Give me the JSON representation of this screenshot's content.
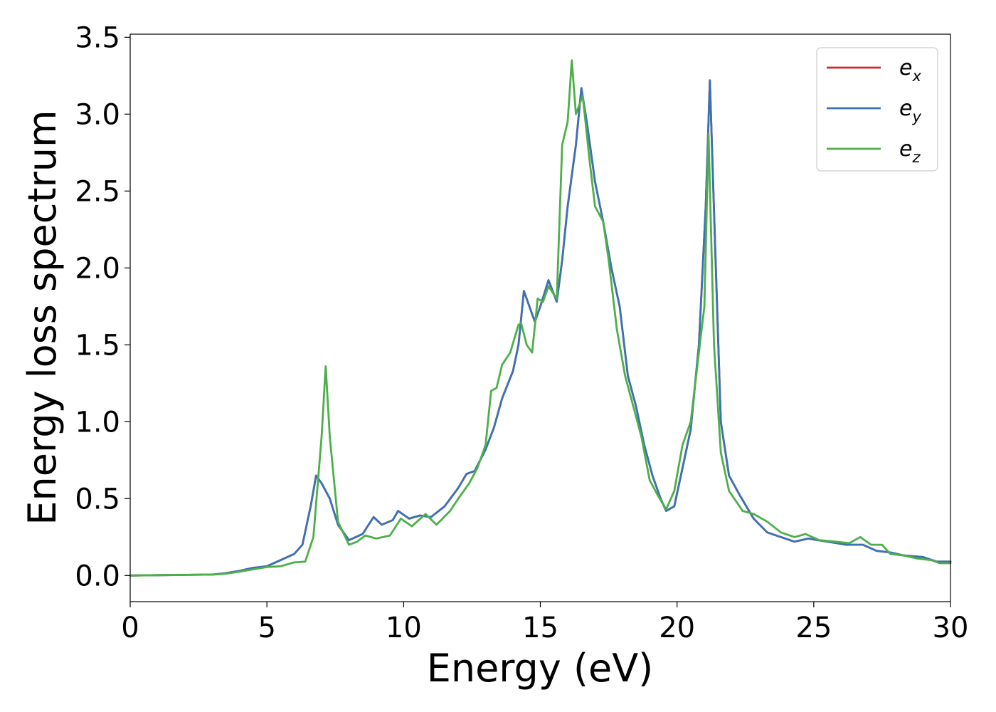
{
  "chart_data": {
    "type": "line",
    "title": "",
    "xlabel": "Energy (eV)",
    "ylabel": "Energy loss spectrum",
    "xlim": [
      0,
      30
    ],
    "ylim": [
      -0.17,
      3.52
    ],
    "xticks": [
      0,
      5,
      10,
      15,
      20,
      25,
      30
    ],
    "yticks": [
      0.0,
      0.5,
      1.0,
      1.5,
      2.0,
      2.5,
      3.0,
      3.5
    ],
    "xtick_labels": [
      "0",
      "5",
      "10",
      "15",
      "20",
      "25",
      "30"
    ],
    "ytick_labels": [
      "0.0",
      "0.5",
      "1.0",
      "1.5",
      "2.0",
      "2.5",
      "3.0",
      "3.5"
    ],
    "grid": false,
    "legend_position": "top-right",
    "series": [
      {
        "name": "e",
        "subscript": "x",
        "color": "#d62728",
        "points": [
          [
            0,
            0
          ],
          [
            1,
            0.002
          ],
          [
            2,
            0.004
          ],
          [
            3,
            0.006
          ],
          [
            3.5,
            0.015
          ],
          [
            4,
            0.03
          ],
          [
            4.5,
            0.05
          ],
          [
            5,
            0.06
          ],
          [
            5.5,
            0.1
          ],
          [
            6,
            0.14
          ],
          [
            6.3,
            0.2
          ],
          [
            6.6,
            0.45
          ],
          [
            6.8,
            0.65
          ],
          [
            7,
            0.6
          ],
          [
            7.3,
            0.5
          ],
          [
            7.6,
            0.33
          ],
          [
            8,
            0.23
          ],
          [
            8.5,
            0.27
          ],
          [
            8.9,
            0.38
          ],
          [
            9.2,
            0.33
          ],
          [
            9.6,
            0.36
          ],
          [
            9.8,
            0.42
          ],
          [
            10.2,
            0.37
          ],
          [
            10.6,
            0.39
          ],
          [
            11,
            0.38
          ],
          [
            11.5,
            0.45
          ],
          [
            12,
            0.57
          ],
          [
            12.3,
            0.66
          ],
          [
            12.6,
            0.68
          ],
          [
            13,
            0.82
          ],
          [
            13.3,
            0.96
          ],
          [
            13.6,
            1.15
          ],
          [
            14,
            1.33
          ],
          [
            14.2,
            1.5
          ],
          [
            14.4,
            1.85
          ],
          [
            14.6,
            1.75
          ],
          [
            14.8,
            1.65
          ],
          [
            15,
            1.75
          ],
          [
            15.3,
            1.92
          ],
          [
            15.6,
            1.78
          ],
          [
            15.8,
            2.05
          ],
          [
            16,
            2.4
          ],
          [
            16.3,
            2.8
          ],
          [
            16.5,
            3.17
          ],
          [
            16.7,
            2.95
          ],
          [
            17,
            2.56
          ],
          [
            17.3,
            2.3
          ],
          [
            17.6,
            2.0
          ],
          [
            17.9,
            1.75
          ],
          [
            18.2,
            1.3
          ],
          [
            18.5,
            1.1
          ],
          [
            18.8,
            0.85
          ],
          [
            19.1,
            0.65
          ],
          [
            19.4,
            0.5
          ],
          [
            19.6,
            0.42
          ],
          [
            19.9,
            0.45
          ],
          [
            20.2,
            0.7
          ],
          [
            20.5,
            0.95
          ],
          [
            20.8,
            1.5
          ],
          [
            21.05,
            2.4
          ],
          [
            21.2,
            3.22
          ],
          [
            21.4,
            2.1
          ],
          [
            21.6,
            1.0
          ],
          [
            21.9,
            0.65
          ],
          [
            22.3,
            0.52
          ],
          [
            22.8,
            0.37
          ],
          [
            23.3,
            0.28
          ],
          [
            23.8,
            0.25
          ],
          [
            24.3,
            0.22
          ],
          [
            24.8,
            0.24
          ],
          [
            25.5,
            0.22
          ],
          [
            26.2,
            0.2
          ],
          [
            26.8,
            0.2
          ],
          [
            27.3,
            0.16
          ],
          [
            27.8,
            0.15
          ],
          [
            28.3,
            0.13
          ],
          [
            29,
            0.12
          ],
          [
            29.5,
            0.09
          ],
          [
            30,
            0.09
          ]
        ]
      },
      {
        "name": "e",
        "subscript": "y",
        "color": "#3a73b5",
        "points": [
          [
            0,
            0
          ],
          [
            1,
            0.002
          ],
          [
            2,
            0.004
          ],
          [
            3,
            0.006
          ],
          [
            3.5,
            0.015
          ],
          [
            4,
            0.03
          ],
          [
            4.5,
            0.05
          ],
          [
            5,
            0.06
          ],
          [
            5.5,
            0.1
          ],
          [
            6,
            0.14
          ],
          [
            6.3,
            0.2
          ],
          [
            6.6,
            0.45
          ],
          [
            6.8,
            0.65
          ],
          [
            7,
            0.6
          ],
          [
            7.3,
            0.5
          ],
          [
            7.6,
            0.33
          ],
          [
            8,
            0.23
          ],
          [
            8.5,
            0.27
          ],
          [
            8.9,
            0.38
          ],
          [
            9.2,
            0.33
          ],
          [
            9.6,
            0.36
          ],
          [
            9.8,
            0.42
          ],
          [
            10.2,
            0.37
          ],
          [
            10.6,
            0.39
          ],
          [
            11,
            0.38
          ],
          [
            11.5,
            0.45
          ],
          [
            12,
            0.57
          ],
          [
            12.3,
            0.66
          ],
          [
            12.6,
            0.68
          ],
          [
            13,
            0.82
          ],
          [
            13.3,
            0.96
          ],
          [
            13.6,
            1.15
          ],
          [
            14,
            1.33
          ],
          [
            14.2,
            1.5
          ],
          [
            14.4,
            1.85
          ],
          [
            14.6,
            1.75
          ],
          [
            14.8,
            1.65
          ],
          [
            15,
            1.75
          ],
          [
            15.3,
            1.92
          ],
          [
            15.6,
            1.78
          ],
          [
            15.8,
            2.05
          ],
          [
            16,
            2.4
          ],
          [
            16.3,
            2.8
          ],
          [
            16.5,
            3.17
          ],
          [
            16.7,
            2.95
          ],
          [
            17,
            2.56
          ],
          [
            17.3,
            2.3
          ],
          [
            17.6,
            2.0
          ],
          [
            17.9,
            1.75
          ],
          [
            18.2,
            1.3
          ],
          [
            18.5,
            1.1
          ],
          [
            18.8,
            0.85
          ],
          [
            19.1,
            0.65
          ],
          [
            19.4,
            0.5
          ],
          [
            19.6,
            0.42
          ],
          [
            19.9,
            0.45
          ],
          [
            20.2,
            0.7
          ],
          [
            20.5,
            0.95
          ],
          [
            20.8,
            1.5
          ],
          [
            21.05,
            2.4
          ],
          [
            21.2,
            3.22
          ],
          [
            21.4,
            2.1
          ],
          [
            21.6,
            1.0
          ],
          [
            21.9,
            0.65
          ],
          [
            22.3,
            0.52
          ],
          [
            22.8,
            0.37
          ],
          [
            23.3,
            0.28
          ],
          [
            23.8,
            0.25
          ],
          [
            24.3,
            0.22
          ],
          [
            24.8,
            0.24
          ],
          [
            25.5,
            0.22
          ],
          [
            26.2,
            0.2
          ],
          [
            26.8,
            0.2
          ],
          [
            27.3,
            0.16
          ],
          [
            27.8,
            0.15
          ],
          [
            28.3,
            0.13
          ],
          [
            29,
            0.12
          ],
          [
            29.5,
            0.09
          ],
          [
            30,
            0.09
          ]
        ]
      },
      {
        "name": "e",
        "subscript": "z",
        "color": "#4daf4a",
        "points": [
          [
            0,
            0
          ],
          [
            1,
            0.002
          ],
          [
            2,
            0.004
          ],
          [
            3,
            0.006
          ],
          [
            3.5,
            0.012
          ],
          [
            4,
            0.025
          ],
          [
            4.5,
            0.04
          ],
          [
            5,
            0.055
          ],
          [
            5.5,
            0.06
          ],
          [
            6,
            0.085
          ],
          [
            6.4,
            0.09
          ],
          [
            6.7,
            0.25
          ],
          [
            7,
            0.9
          ],
          [
            7.15,
            1.36
          ],
          [
            7.3,
            0.9
          ],
          [
            7.6,
            0.35
          ],
          [
            8,
            0.2
          ],
          [
            8.3,
            0.22
          ],
          [
            8.6,
            0.26
          ],
          [
            9,
            0.24
          ],
          [
            9.5,
            0.26
          ],
          [
            9.9,
            0.37
          ],
          [
            10.3,
            0.32
          ],
          [
            10.8,
            0.4
          ],
          [
            11.2,
            0.33
          ],
          [
            11.7,
            0.42
          ],
          [
            12,
            0.5
          ],
          [
            12.4,
            0.6
          ],
          [
            12.7,
            0.7
          ],
          [
            13,
            0.85
          ],
          [
            13.2,
            1.2
          ],
          [
            13.4,
            1.22
          ],
          [
            13.6,
            1.37
          ],
          [
            13.9,
            1.45
          ],
          [
            14.2,
            1.63
          ],
          [
            14.3,
            1.64
          ],
          [
            14.5,
            1.5
          ],
          [
            14.7,
            1.45
          ],
          [
            14.9,
            1.8
          ],
          [
            15.1,
            1.78
          ],
          [
            15.3,
            1.88
          ],
          [
            15.6,
            1.8
          ],
          [
            15.8,
            2.8
          ],
          [
            16,
            2.95
          ],
          [
            16.15,
            3.35
          ],
          [
            16.3,
            3.0
          ],
          [
            16.55,
            3.12
          ],
          [
            16.8,
            2.7
          ],
          [
            17,
            2.4
          ],
          [
            17.3,
            2.3
          ],
          [
            17.5,
            2.05
          ],
          [
            17.8,
            1.6
          ],
          [
            18.1,
            1.3
          ],
          [
            18.4,
            1.1
          ],
          [
            18.7,
            0.9
          ],
          [
            19.0,
            0.62
          ],
          [
            19.3,
            0.52
          ],
          [
            19.6,
            0.43
          ],
          [
            19.9,
            0.55
          ],
          [
            20.2,
            0.85
          ],
          [
            20.5,
            1.0
          ],
          [
            20.8,
            1.45
          ],
          [
            21.0,
            1.75
          ],
          [
            21.15,
            2.87
          ],
          [
            21.35,
            1.5
          ],
          [
            21.6,
            0.8
          ],
          [
            21.9,
            0.55
          ],
          [
            22.4,
            0.42
          ],
          [
            22.8,
            0.4
          ],
          [
            23.3,
            0.35
          ],
          [
            23.8,
            0.28
          ],
          [
            24.3,
            0.25
          ],
          [
            24.7,
            0.27
          ],
          [
            25.2,
            0.23
          ],
          [
            25.8,
            0.22
          ],
          [
            26.3,
            0.21
          ],
          [
            26.7,
            0.25
          ],
          [
            27.1,
            0.2
          ],
          [
            27.5,
            0.2
          ],
          [
            27.8,
            0.14
          ],
          [
            28.3,
            0.13
          ],
          [
            28.8,
            0.11
          ],
          [
            29.3,
            0.1
          ],
          [
            29.6,
            0.08
          ],
          [
            30,
            0.08
          ]
        ]
      }
    ]
  }
}
